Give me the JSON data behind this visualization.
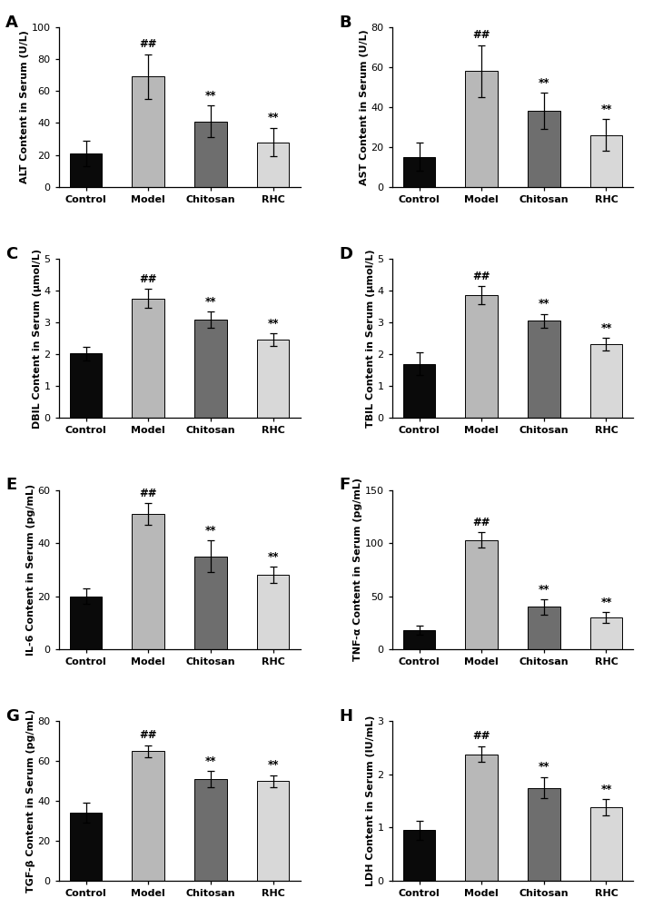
{
  "panels": [
    {
      "label": "A",
      "ylabel": "ALT Content in Serum (U/L)",
      "ylim": [
        0,
        100
      ],
      "yticks": [
        0,
        20,
        40,
        60,
        80,
        100
      ],
      "categories": [
        "Control",
        "Model",
        "Chitosan",
        "RHC"
      ],
      "values": [
        21,
        69,
        41,
        28
      ],
      "errors": [
        8,
        14,
        10,
        9
      ],
      "annotations": [
        "",
        "##",
        "**",
        "**"
      ],
      "colors": [
        "#0a0a0a",
        "#b8b8b8",
        "#6e6e6e",
        "#d8d8d8"
      ]
    },
    {
      "label": "B",
      "ylabel": "AST Content in Serum (U/L)",
      "ylim": [
        0,
        80
      ],
      "yticks": [
        0,
        20,
        40,
        60,
        80
      ],
      "categories": [
        "Control",
        "Model",
        "Chitosan",
        "RHC"
      ],
      "values": [
        15,
        58,
        38,
        26
      ],
      "errors": [
        7,
        13,
        9,
        8
      ],
      "annotations": [
        "",
        "##",
        "**",
        "**"
      ],
      "colors": [
        "#0a0a0a",
        "#b8b8b8",
        "#6e6e6e",
        "#d8d8d8"
      ]
    },
    {
      "label": "C",
      "ylabel": "DBIL Content in Serum (μmol/L)",
      "ylim": [
        0,
        5
      ],
      "yticks": [
        0,
        1,
        2,
        3,
        4,
        5
      ],
      "categories": [
        "Control",
        "Model",
        "Chitosan",
        "RHC"
      ],
      "values": [
        2.02,
        3.75,
        3.08,
        2.45
      ],
      "errors": [
        0.22,
        0.3,
        0.25,
        0.2
      ],
      "annotations": [
        "",
        "##",
        "**",
        "**"
      ],
      "colors": [
        "#0a0a0a",
        "#b8b8b8",
        "#6e6e6e",
        "#d8d8d8"
      ]
    },
    {
      "label": "D",
      "ylabel": "TBIL Content in Serum (μmol/L)",
      "ylim": [
        0,
        5
      ],
      "yticks": [
        0,
        1,
        2,
        3,
        4,
        5
      ],
      "categories": [
        "Control",
        "Model",
        "Chitosan",
        "RHC"
      ],
      "values": [
        1.7,
        3.85,
        3.05,
        2.32
      ],
      "errors": [
        0.35,
        0.28,
        0.22,
        0.2
      ],
      "annotations": [
        "",
        "##",
        "**",
        "**"
      ],
      "colors": [
        "#0a0a0a",
        "#b8b8b8",
        "#6e6e6e",
        "#d8d8d8"
      ]
    },
    {
      "label": "E",
      "ylabel": "IL-6 Content in Serum (pg/mL)",
      "ylim": [
        0,
        60
      ],
      "yticks": [
        0,
        20,
        40,
        60
      ],
      "categories": [
        "Control",
        "Model",
        "Chitosan",
        "RHC"
      ],
      "values": [
        20,
        51,
        35,
        28
      ],
      "errors": [
        3,
        4,
        6,
        3
      ],
      "annotations": [
        "",
        "##",
        "**",
        "**"
      ],
      "colors": [
        "#0a0a0a",
        "#b8b8b8",
        "#6e6e6e",
        "#d8d8d8"
      ]
    },
    {
      "label": "F",
      "ylabel": "TNF-α Content in Serum (pg/mL)",
      "ylim": [
        0,
        150
      ],
      "yticks": [
        0,
        50,
        100,
        150
      ],
      "categories": [
        "Control",
        "Model",
        "Chitosan",
        "RHC"
      ],
      "values": [
        18,
        103,
        40,
        30
      ],
      "errors": [
        4,
        7,
        7,
        5
      ],
      "annotations": [
        "",
        "##",
        "**",
        "**"
      ],
      "colors": [
        "#0a0a0a",
        "#b8b8b8",
        "#6e6e6e",
        "#d8d8d8"
      ]
    },
    {
      "label": "G",
      "ylabel": "TGF-β Content in Serum (pg/mL)",
      "ylim": [
        0,
        80
      ],
      "yticks": [
        0,
        20,
        40,
        60,
        80
      ],
      "categories": [
        "Control",
        "Model",
        "Chitosan",
        "RHC"
      ],
      "values": [
        34,
        65,
        51,
        50
      ],
      "errors": [
        5,
        3,
        4,
        3
      ],
      "annotations": [
        "",
        "##",
        "**",
        "**"
      ],
      "colors": [
        "#0a0a0a",
        "#b8b8b8",
        "#6e6e6e",
        "#d8d8d8"
      ]
    },
    {
      "label": "H",
      "ylabel": "LDH Content in Serum (IU/mL)",
      "ylim": [
        0,
        3
      ],
      "yticks": [
        0,
        1,
        2,
        3
      ],
      "categories": [
        "Control",
        "Model",
        "Chitosan",
        "RHC"
      ],
      "values": [
        0.95,
        2.38,
        1.75,
        1.38
      ],
      "errors": [
        0.18,
        0.15,
        0.2,
        0.15
      ],
      "annotations": [
        "",
        "##",
        "**",
        "**"
      ],
      "colors": [
        "#0a0a0a",
        "#b8b8b8",
        "#6e6e6e",
        "#d8d8d8"
      ]
    }
  ],
  "background_color": "#ffffff",
  "annotation_fontsize": 8.5,
  "tick_fontsize": 8,
  "ylabel_fontsize": 8,
  "panel_label_fontsize": 13,
  "bar_width": 0.52,
  "cap_size": 3
}
